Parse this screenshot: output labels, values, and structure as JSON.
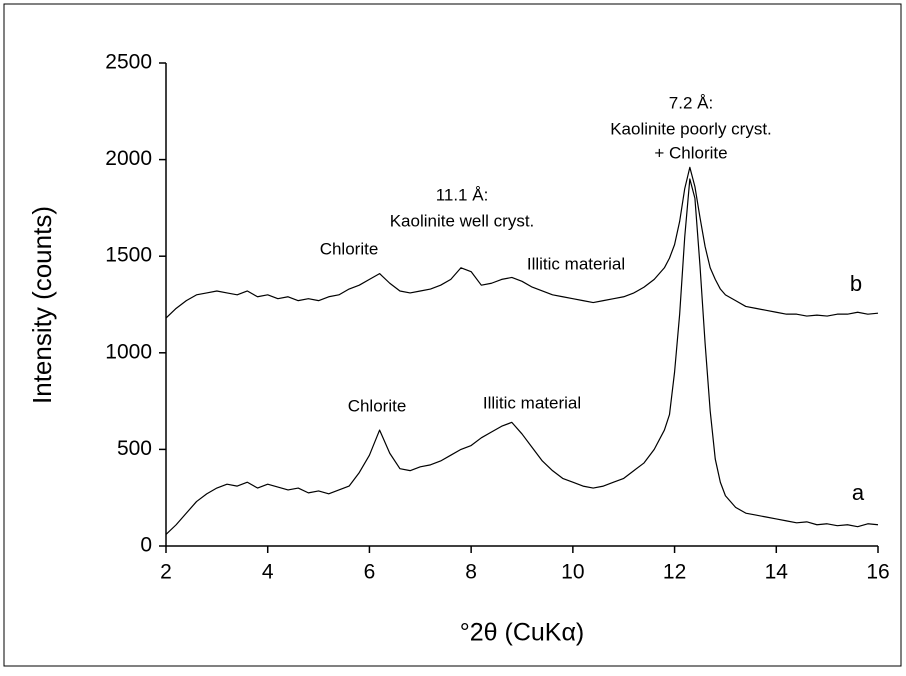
{
  "chart_data": {
    "type": "line",
    "x_label": "°2θ (CuKα)",
    "y_label": "Intensity (counts)",
    "x": [
      2.0,
      2.2,
      2.4,
      2.6,
      2.8,
      3.0,
      3.2,
      3.4,
      3.6,
      3.8,
      4.0,
      4.2,
      4.4,
      4.6,
      4.8,
      5.0,
      5.2,
      5.4,
      5.6,
      5.8,
      6.0,
      6.2,
      6.4,
      6.6,
      6.8,
      7.0,
      7.2,
      7.4,
      7.6,
      7.8,
      8.0,
      8.2,
      8.4,
      8.6,
      8.8,
      9.0,
      9.2,
      9.4,
      9.6,
      9.8,
      10.0,
      10.2,
      10.4,
      10.6,
      10.8,
      11.0,
      11.2,
      11.4,
      11.6,
      11.8,
      11.9,
      12.0,
      12.1,
      12.2,
      12.3,
      12.4,
      12.5,
      12.6,
      12.7,
      12.8,
      12.9,
      13.0,
      13.2,
      13.4,
      13.6,
      13.8,
      14.0,
      14.2,
      14.4,
      14.6,
      14.8,
      15.0,
      15.2,
      15.4,
      15.6,
      15.8,
      16.0
    ],
    "series": [
      {
        "name": "a",
        "color": "#000000",
        "values": [
          60,
          110,
          170,
          230,
          270,
          300,
          320,
          310,
          330,
          300,
          320,
          305,
          290,
          300,
          275,
          285,
          270,
          290,
          310,
          380,
          470,
          600,
          480,
          400,
          390,
          410,
          420,
          440,
          470,
          500,
          520,
          560,
          590,
          620,
          640,
          580,
          510,
          440,
          390,
          350,
          330,
          310,
          300,
          310,
          330,
          350,
          390,
          430,
          500,
          600,
          680,
          900,
          1200,
          1600,
          1900,
          1800,
          1450,
          1050,
          700,
          450,
          330,
          260,
          200,
          170,
          160,
          150,
          140,
          130,
          120,
          125,
          110,
          115,
          105,
          110,
          100,
          115,
          110
        ]
      },
      {
        "name": "b",
        "color": "#000000",
        "values": [
          1180,
          1230,
          1270,
          1300,
          1310,
          1320,
          1310,
          1300,
          1320,
          1290,
          1300,
          1280,
          1290,
          1270,
          1280,
          1270,
          1290,
          1300,
          1330,
          1350,
          1380,
          1410,
          1360,
          1320,
          1310,
          1320,
          1330,
          1350,
          1380,
          1440,
          1420,
          1350,
          1360,
          1380,
          1390,
          1370,
          1340,
          1320,
          1300,
          1290,
          1280,
          1270,
          1260,
          1270,
          1280,
          1290,
          1310,
          1340,
          1380,
          1440,
          1490,
          1560,
          1680,
          1850,
          1960,
          1860,
          1700,
          1550,
          1440,
          1380,
          1330,
          1300,
          1270,
          1240,
          1230,
          1220,
          1210,
          1200,
          1200,
          1190,
          1195,
          1190,
          1200,
          1200,
          1210,
          1200,
          1205
        ]
      }
    ],
    "annotations": [
      "7.2 Å:",
      "Kaolinite poorly cryst.",
      "+ Chlorite",
      "11.1 Å:",
      "Kaolinite well cryst.",
      "Chlorite",
      "Illitic material",
      "Chlorite",
      "Illitic material"
    ],
    "xlim": [
      2,
      16
    ],
    "xticks": [
      2,
      4,
      6,
      8,
      10,
      12,
      14,
      16
    ],
    "ylim": [
      0,
      2500
    ],
    "yticks": [
      0,
      500,
      1000,
      1500,
      2000,
      2500
    ],
    "grid": false
  }
}
